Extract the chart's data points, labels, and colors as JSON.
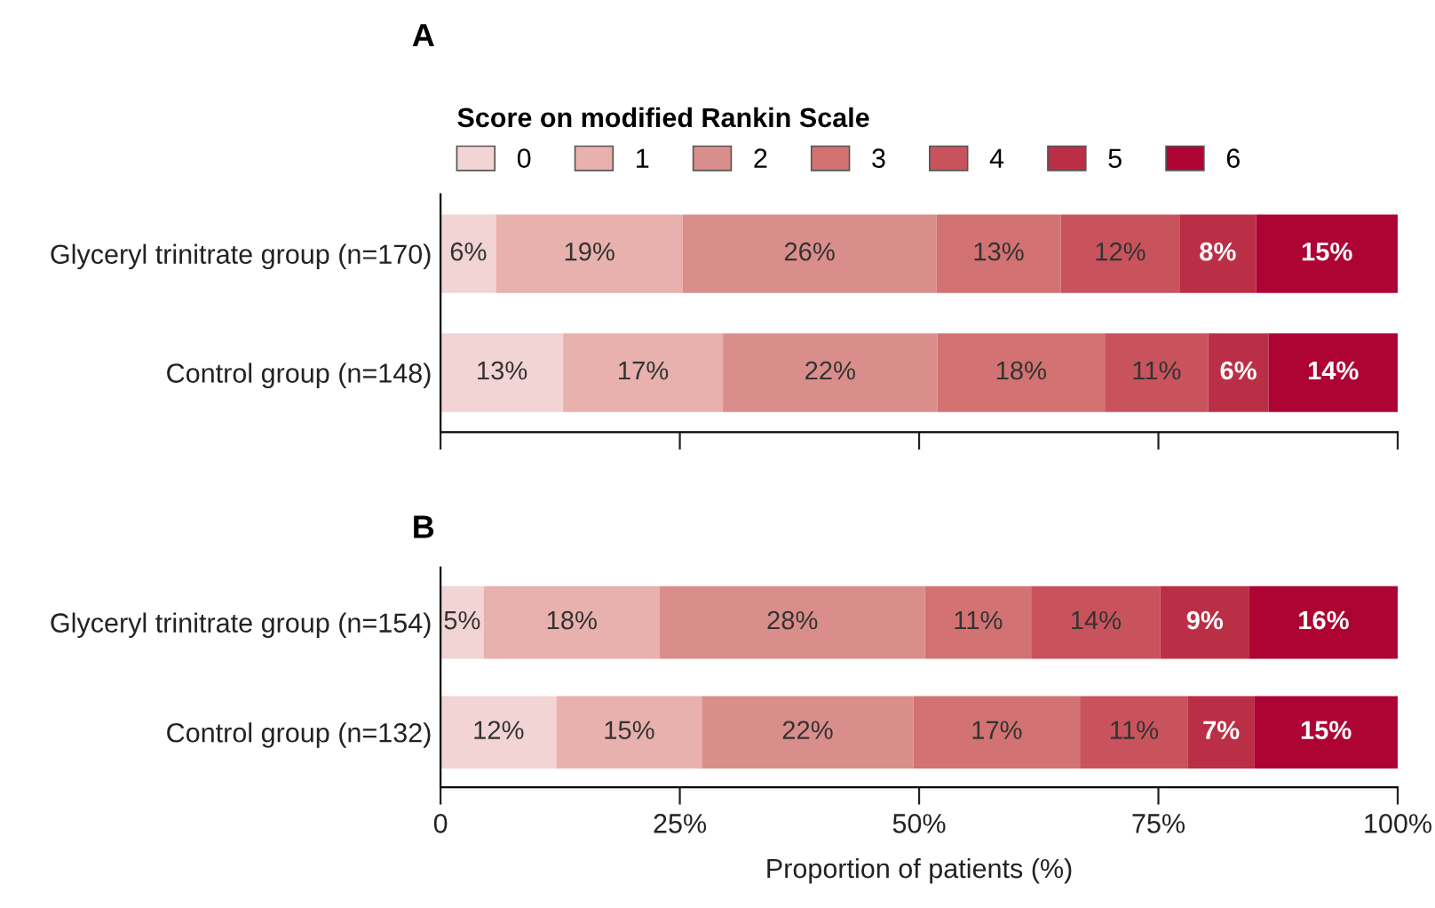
{
  "chart_data": [
    {
      "type": "bar",
      "title": "A",
      "orientation": "horizontal",
      "stacked": true,
      "legend": "top left",
      "legend_title": "Score on modified Rankin Scale",
      "tick_labels": "y",
      "categories": [
        "Glyceryl trinitrate group (n=170)",
        "Control group (n=148)"
      ],
      "xlim": [
        0,
        100
      ],
      "xticks": [
        {
          "value": 0,
          "label": null
        },
        {
          "value": 25,
          "label": null
        },
        {
          "value": 50,
          "label": null
        },
        {
          "value": 75,
          "label": null
        },
        {
          "value": 100,
          "label": null
        }
      ],
      "series": [
        {
          "name": "0",
          "color": "#f2d4d4",
          "values": [
            5.8,
            12.8
          ],
          "value_labels": [
            "6%",
            "13%"
          ]
        },
        {
          "name": "1",
          "color": "#e8b1ad",
          "values": [
            19.5,
            16.7
          ],
          "value_labels": [
            "19%",
            "17%"
          ]
        },
        {
          "name": "2",
          "color": "#da8e8c",
          "values": [
            26.5,
            22.4
          ],
          "value_labels": [
            "26%",
            "22%"
          ]
        },
        {
          "name": "3",
          "color": "#d27272",
          "values": [
            13.0,
            17.5
          ],
          "value_labels": [
            "13%",
            "18%"
          ]
        },
        {
          "name": "4",
          "color": "#c9535d",
          "values": [
            12.4,
            10.8
          ],
          "value_labels": [
            "12%",
            "11%"
          ]
        },
        {
          "name": "5",
          "color": "#bb2f46",
          "values": [
            8.0,
            6.3
          ],
          "value_labels": [
            "8%",
            "6%"
          ]
        },
        {
          "name": "6",
          "color": "#ad0434",
          "values": [
            14.8,
            13.5
          ],
          "value_labels": [
            "15%",
            "14%"
          ]
        }
      ]
    },
    {
      "type": "bar",
      "title": "B",
      "orientation": "horizontal",
      "stacked": true,
      "xlabel": "Proportion of patients (%)",
      "categories": [
        "Glyceryl trinitrate group (n=154)",
        "Control group (n=132)"
      ],
      "xlim": [
        0,
        100
      ],
      "xticks": [
        {
          "value": 0,
          "label": "0"
        },
        {
          "value": 25,
          "label": "25%"
        },
        {
          "value": 50,
          "label": "50%"
        },
        {
          "value": 75,
          "label": "75%"
        },
        {
          "value": 100,
          "label": "100%"
        }
      ],
      "series": [
        {
          "name": "0",
          "color": "#f2d4d4",
          "values": [
            4.5,
            12.1
          ],
          "value_labels": [
            "5%",
            "12%"
          ]
        },
        {
          "name": "1",
          "color": "#e8b1ad",
          "values": [
            18.4,
            15.2
          ],
          "value_labels": [
            "18%",
            "15%"
          ]
        },
        {
          "name": "2",
          "color": "#da8e8c",
          "values": [
            27.7,
            22.1
          ],
          "value_labels": [
            "28%",
            "22%"
          ]
        },
        {
          "name": "3",
          "color": "#d27272",
          "values": [
            11.1,
            17.4
          ],
          "value_labels": [
            "11%",
            "17%"
          ]
        },
        {
          "name": "4",
          "color": "#c9535d",
          "values": [
            13.5,
            11.3
          ],
          "value_labels": [
            "14%",
            "11%"
          ]
        },
        {
          "name": "5",
          "color": "#bb2f46",
          "values": [
            9.3,
            6.9
          ],
          "value_labels": [
            "9%",
            "7%"
          ]
        },
        {
          "name": "6",
          "color": "#ad0434",
          "values": [
            15.5,
            15.0
          ],
          "value_labels": [
            "16%",
            "15%"
          ]
        }
      ]
    }
  ]
}
